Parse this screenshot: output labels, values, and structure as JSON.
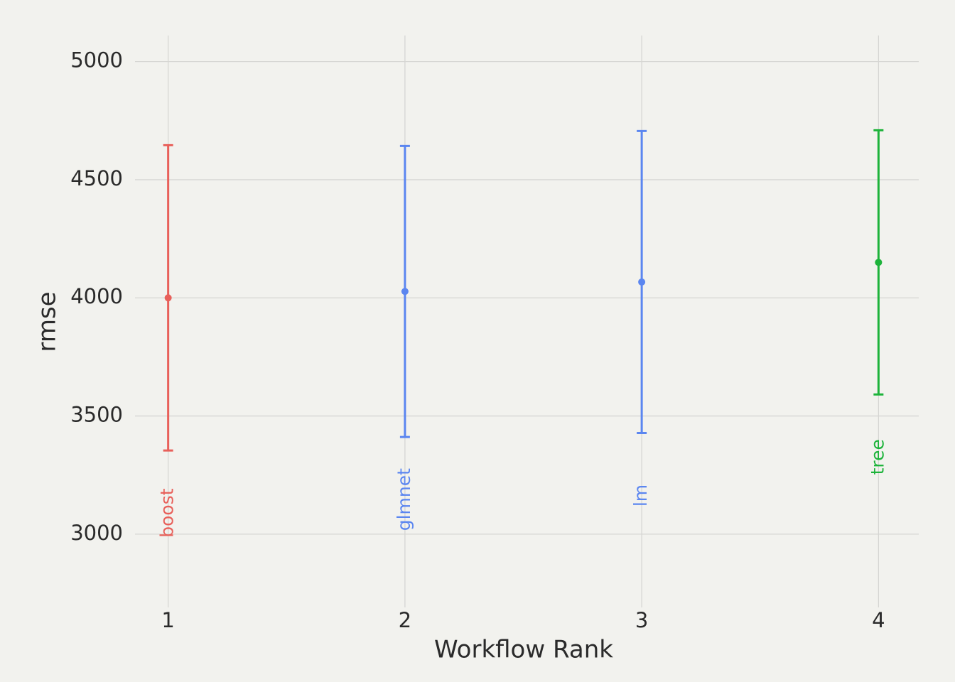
{
  "chart_data": {
    "type": "errorbar",
    "x_label": "Workflow Rank",
    "y_label": "rmse",
    "x": [
      1,
      2,
      3,
      4
    ],
    "values": [
      4000,
      4027,
      4067,
      4150
    ],
    "errors": [
      646,
      616,
      639,
      559
    ],
    "point_labels": [
      "boost",
      "glmnet",
      "lm",
      "tree"
    ],
    "colors": [
      "#e8605a",
      "#5b86f0",
      "#5b86f0",
      "#1db33a"
    ],
    "xlim": [
      0.86,
      4.17
    ],
    "xticks": [
      1,
      2,
      3,
      4
    ],
    "ylim": [
      2690,
      5110
    ],
    "yticks": [
      3000,
      3500,
      4000,
      4500,
      5000
    ],
    "grid": true
  }
}
